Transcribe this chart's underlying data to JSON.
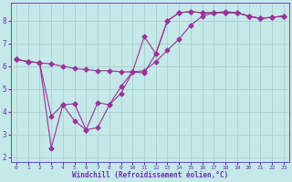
{
  "bg_color": "#c5e8e8",
  "line_color": "#993399",
  "grid_color": "#aad0d0",
  "xlabel": "Windchill (Refroidissement éolien,°C)",
  "xlabel_color": "#6633aa",
  "tick_color": "#6633aa",
  "spine_color": "#6633aa",
  "xlim": [
    -0.5,
    23.5
  ],
  "ylim": [
    1.8,
    8.8
  ],
  "yticks": [
    2,
    3,
    4,
    5,
    6,
    7,
    8
  ],
  "xticks": [
    0,
    1,
    2,
    3,
    4,
    5,
    6,
    7,
    8,
    9,
    10,
    11,
    12,
    13,
    14,
    15,
    16,
    17,
    18,
    19,
    20,
    21,
    22,
    23
  ],
  "series1_x": [
    0,
    1,
    2,
    3,
    4,
    5,
    6,
    7,
    8,
    9,
    10,
    11,
    12,
    13,
    14,
    15,
    16,
    17,
    18,
    19,
    20,
    21,
    22,
    23
  ],
  "series1_y": [
    6.3,
    6.2,
    6.15,
    6.1,
    6.0,
    5.9,
    5.85,
    5.8,
    5.8,
    5.75,
    5.75,
    5.8,
    6.2,
    6.7,
    7.2,
    7.8,
    8.2,
    8.35,
    8.4,
    8.35,
    8.2,
    8.1,
    8.15,
    8.2
  ],
  "series2_x": [
    0,
    1,
    2,
    3,
    4,
    5,
    6,
    7,
    8,
    9,
    10,
    11,
    12,
    13,
    14,
    15,
    16,
    17,
    18,
    19,
    20,
    21,
    22,
    23
  ],
  "series2_y": [
    6.3,
    6.2,
    6.15,
    3.8,
    4.3,
    3.6,
    3.2,
    3.3,
    4.3,
    4.8,
    5.75,
    7.3,
    6.55,
    8.0,
    8.35,
    8.4,
    8.35,
    8.35,
    8.35,
    8.35,
    8.2,
    8.1,
    8.15,
    8.2
  ],
  "series3_x": [
    0,
    1,
    2,
    3,
    4,
    5,
    6,
    7,
    8,
    9,
    10,
    11,
    12,
    13,
    14,
    15,
    16,
    17,
    18,
    19,
    20,
    21,
    22,
    23
  ],
  "series3_y": [
    6.3,
    6.2,
    6.15,
    2.4,
    4.3,
    4.35,
    3.2,
    4.4,
    4.3,
    5.1,
    5.75,
    5.7,
    6.55,
    8.0,
    8.35,
    8.4,
    8.35,
    8.35,
    8.35,
    8.35,
    8.2,
    8.1,
    8.15,
    8.2
  ]
}
